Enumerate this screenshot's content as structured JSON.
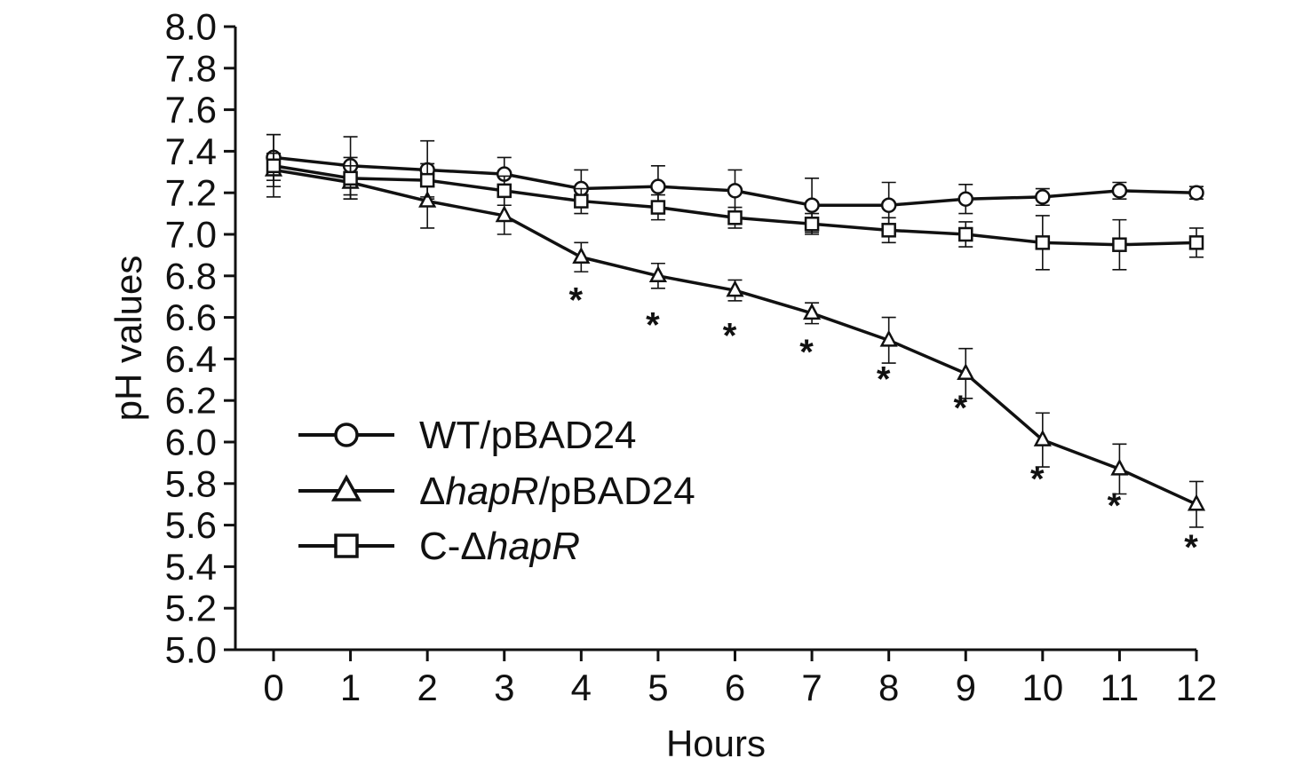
{
  "chart_data": {
    "type": "line",
    "xlabel": "Hours",
    "ylabel": "pH values",
    "xlim": [
      0,
      12
    ],
    "ylim": [
      5.0,
      8.0
    ],
    "x": [
      0,
      1,
      2,
      3,
      4,
      5,
      6,
      7,
      8,
      9,
      10,
      11,
      12
    ],
    "x_ticks": [
      "0",
      "1",
      "2",
      "3",
      "4",
      "5",
      "6",
      "7",
      "8",
      "9",
      "10",
      "11",
      "12"
    ],
    "y_ticks": [
      "5.0",
      "5.2",
      "5.4",
      "5.6",
      "5.8",
      "6.0",
      "6.2",
      "6.4",
      "6.6",
      "6.8",
      "7.0",
      "7.2",
      "7.4",
      "7.6",
      "7.8",
      "8.0"
    ],
    "grid": false,
    "legend_position": "bottom-left",
    "series": [
      {
        "name": "WT/pBAD24",
        "name_parts": [
          {
            "t": "WT/pBAD24",
            "i": false
          }
        ],
        "marker": "circle",
        "values": [
          7.37,
          7.33,
          7.31,
          7.29,
          7.22,
          7.23,
          7.21,
          7.14,
          7.14,
          7.17,
          7.18,
          7.21,
          7.2
        ],
        "errors": [
          0.11,
          0.14,
          0.14,
          0.08,
          0.09,
          0.1,
          0.1,
          0.13,
          0.11,
          0.07,
          0.04,
          0.04,
          0.03
        ]
      },
      {
        "name": "ΔhapR/pBAD24",
        "name_parts": [
          {
            "t": "Δ",
            "i": false
          },
          {
            "t": "hapR",
            "i": true
          },
          {
            "t": "/pBAD24",
            "i": false
          }
        ],
        "marker": "triangle",
        "values": [
          7.31,
          7.25,
          7.16,
          7.09,
          6.89,
          6.8,
          6.73,
          6.62,
          6.49,
          6.33,
          6.01,
          5.87,
          5.7
        ],
        "errors": [
          0.08,
          0.08,
          0.13,
          0.09,
          0.07,
          0.06,
          0.05,
          0.05,
          0.11,
          0.12,
          0.13,
          0.12,
          0.11
        ]
      },
      {
        "name": "C-ΔhapR",
        "name_parts": [
          {
            "t": "C-Δ",
            "i": false
          },
          {
            "t": "hapR",
            "i": true
          }
        ],
        "marker": "square",
        "values": [
          7.33,
          7.27,
          7.26,
          7.21,
          7.16,
          7.13,
          7.08,
          7.05,
          7.02,
          7.0,
          6.96,
          6.95,
          6.96
        ],
        "errors": [
          0.15,
          0.1,
          0.08,
          0.07,
          0.06,
          0.06,
          0.05,
          0.05,
          0.06,
          0.06,
          0.13,
          0.12,
          0.07
        ]
      }
    ],
    "annotations": [
      {
        "text": "*",
        "x": 4,
        "y": 6.72
      },
      {
        "text": "*",
        "x": 5,
        "y": 6.6
      },
      {
        "text": "*",
        "x": 6,
        "y": 6.55
      },
      {
        "text": "*",
        "x": 7,
        "y": 6.47
      },
      {
        "text": "*",
        "x": 8,
        "y": 6.34
      },
      {
        "text": "*",
        "x": 9,
        "y": 6.2
      },
      {
        "text": "*",
        "x": 10,
        "y": 5.86
      },
      {
        "text": "*",
        "x": 11,
        "y": 5.73
      },
      {
        "text": "*",
        "x": 12,
        "y": 5.53
      }
    ]
  }
}
